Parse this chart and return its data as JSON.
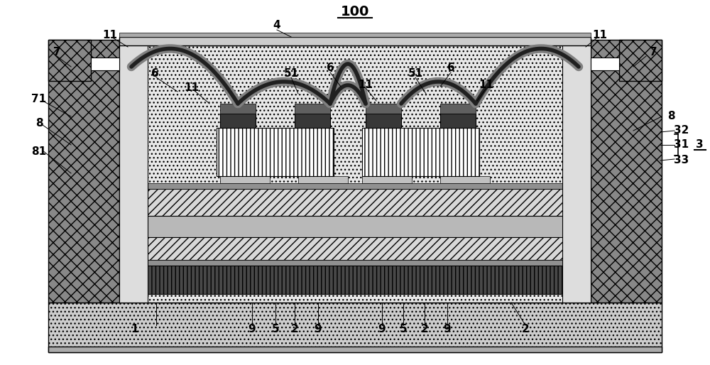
{
  "bg_color": "#ffffff",
  "fig_width": 10.0,
  "fig_height": 5.14
}
